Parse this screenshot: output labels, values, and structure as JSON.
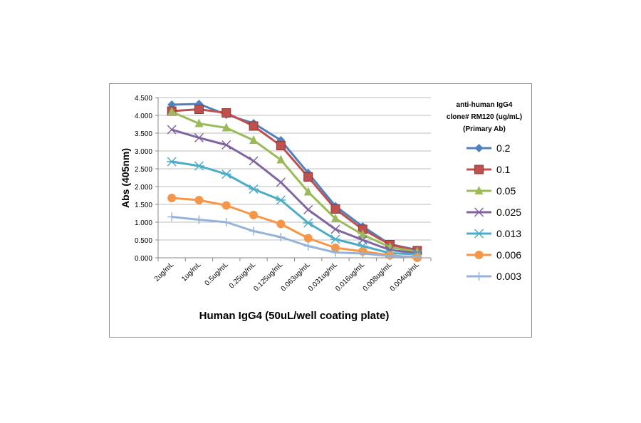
{
  "chart_data": {
    "type": "line",
    "xlabel": "Human IgG4 (50uL/well coating plate)",
    "ylabel": "Abs (405nm)",
    "ylim": [
      0,
      4.5
    ],
    "yticks": [
      "0.000",
      "0.500",
      "1.000",
      "1.500",
      "2.000",
      "2.500",
      "3.000",
      "3.500",
      "4.000",
      "4.500"
    ],
    "grid": true,
    "legend_position": "right",
    "legend_title": [
      "anti-human IgG4",
      "clone# RM120 (ug/mL)",
      "(Primary Ab)"
    ],
    "categories": [
      "2ug/mL",
      "1ug/mL",
      "0.5ug/mL",
      "0.25ug/mL",
      "0.125ug/mL",
      "0.063ug/mL",
      "0.031ug/mL",
      "0.016ug/mL",
      "0.008ug/mL",
      "0.004ug/mL"
    ],
    "series": [
      {
        "name": "0.2",
        "color": "#4F81BD",
        "marker": "diamond",
        "values": [
          4.3,
          4.32,
          4.02,
          3.78,
          3.3,
          2.38,
          1.45,
          0.88,
          0.38,
          0.22
        ]
      },
      {
        "name": "0.1",
        "color": "#C0504D",
        "marker": "square",
        "values": [
          4.12,
          4.17,
          4.07,
          3.7,
          3.15,
          2.27,
          1.37,
          0.8,
          0.37,
          0.2
        ]
      },
      {
        "name": "0.05",
        "color": "#9BBB59",
        "marker": "triangle",
        "values": [
          4.1,
          3.77,
          3.65,
          3.3,
          2.75,
          1.85,
          1.1,
          0.65,
          0.3,
          0.17
        ]
      },
      {
        "name": "0.025",
        "color": "#8064A2",
        "marker": "x",
        "values": [
          3.6,
          3.37,
          3.17,
          2.72,
          2.12,
          1.35,
          0.8,
          0.5,
          0.22,
          0.13
        ]
      },
      {
        "name": "0.013",
        "color": "#4BACC6",
        "marker": "asterisk",
        "values": [
          2.7,
          2.58,
          2.35,
          1.93,
          1.62,
          0.98,
          0.52,
          0.33,
          0.13,
          0.1
        ]
      },
      {
        "name": "0.006",
        "color": "#F79646",
        "marker": "circle",
        "values": [
          1.68,
          1.62,
          1.47,
          1.2,
          0.95,
          0.55,
          0.28,
          0.18,
          0.07,
          0.0
        ]
      },
      {
        "name": "0.003",
        "color": "#95B3D7",
        "marker": "plus",
        "values": [
          1.15,
          1.07,
          1.0,
          0.75,
          0.58,
          0.33,
          0.15,
          0.12,
          0.05,
          0.03
        ]
      }
    ]
  }
}
